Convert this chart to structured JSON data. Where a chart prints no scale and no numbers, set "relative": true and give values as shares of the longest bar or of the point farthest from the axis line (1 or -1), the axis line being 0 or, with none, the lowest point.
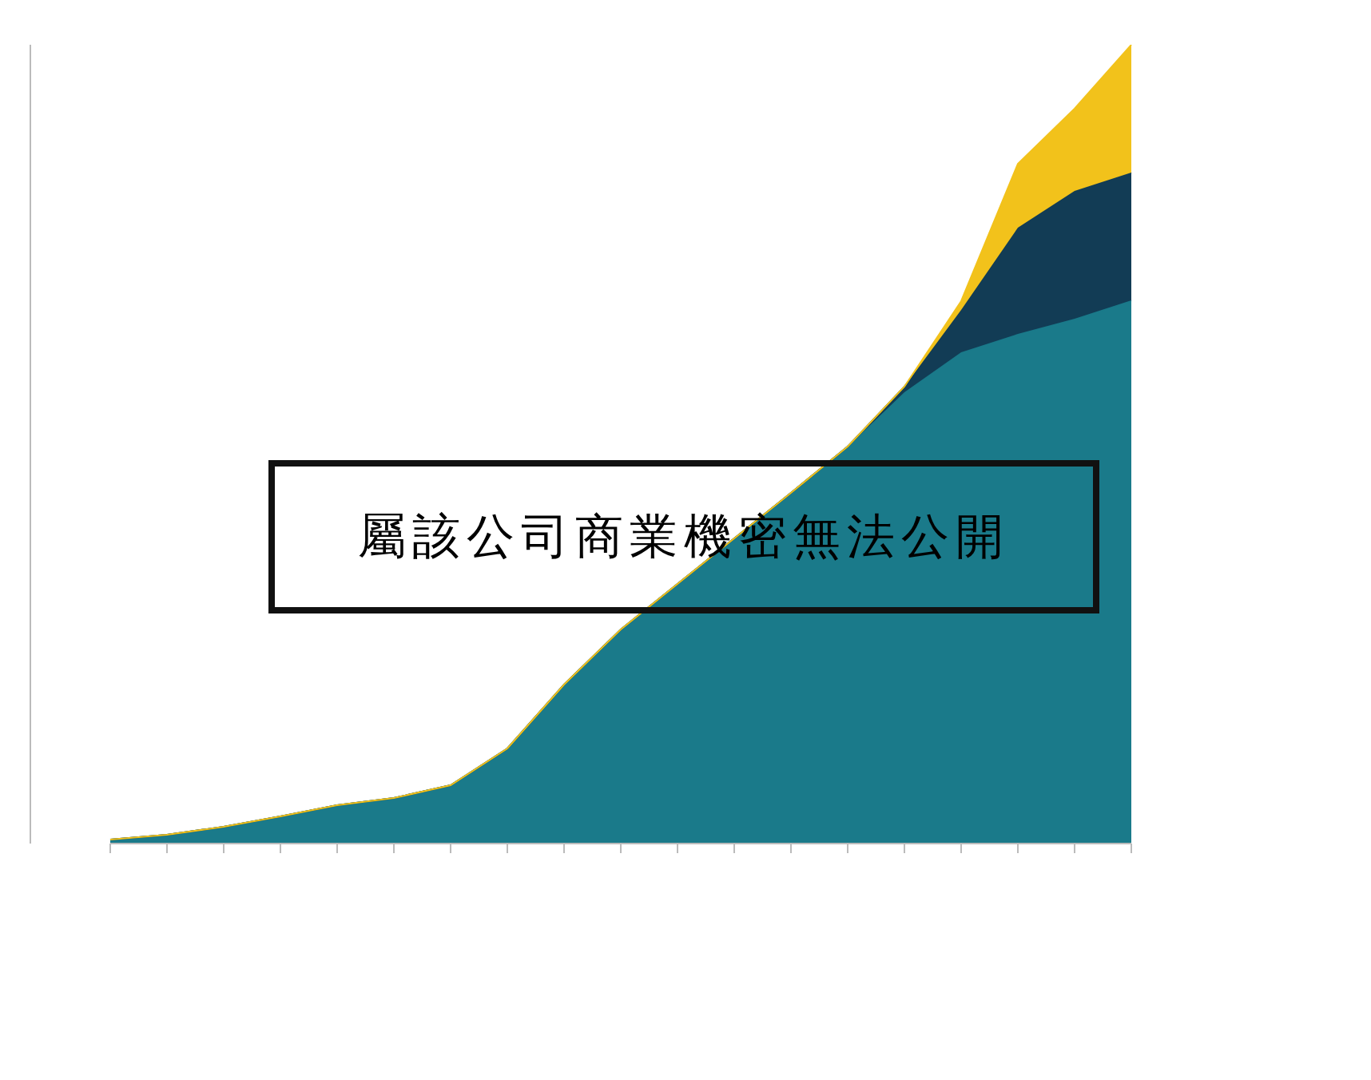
{
  "chart_data": {
    "type": "area",
    "stacked": true,
    "relative": true,
    "categories": [
      null,
      null,
      null,
      null,
      null,
      null,
      null,
      null,
      null,
      null,
      null,
      null,
      null,
      null,
      null,
      null,
      null,
      null,
      null
    ],
    "series": [
      {
        "color": "#1a7a8a",
        "values": [
          0.005,
          0.011,
          0.021,
          0.034,
          0.048,
          0.057,
          0.073,
          0.119,
          0.199,
          0.268,
          0.325,
          0.382,
          0.439,
          0.497,
          0.565,
          0.615,
          0.638,
          0.657,
          0.68
        ]
      },
      {
        "color": "#123c55",
        "values": [
          0,
          0,
          0,
          0,
          0,
          0,
          0,
          0,
          0,
          0,
          0,
          0,
          0,
          0,
          0.007,
          0.053,
          0.133,
          0.16,
          0.16
        ]
      },
      {
        "color": "#f2c21b",
        "values": [
          0,
          0,
          0,
          0,
          0,
          0,
          0,
          0,
          0,
          0,
          0,
          0,
          0,
          0,
          0,
          0.011,
          0.08,
          0.103,
          0.16
        ]
      }
    ],
    "annotations": [
      "屬該公司商業機密無法公開"
    ]
  }
}
